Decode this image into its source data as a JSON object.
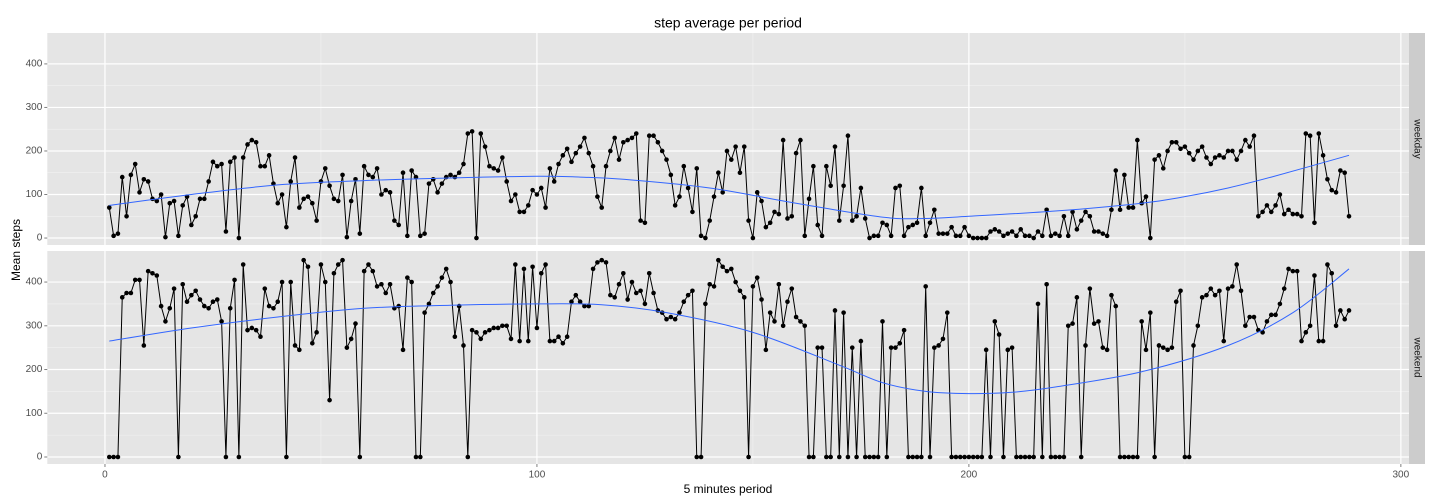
{
  "chart_data": {
    "type": "line",
    "title": "step average per period",
    "x_label": "5 minutes period",
    "y_label": "Mean steps",
    "xlim": [
      -13.35,
      302.35
    ],
    "ylim": [
      -16,
      471
    ],
    "xticks": [
      0,
      100,
      200,
      300
    ],
    "yticks": [
      0,
      100,
      200,
      300,
      400
    ],
    "grid": true,
    "point_color": "#000000",
    "smooth_color": "#3366ff",
    "x": [
      1,
      2,
      3,
      4,
      5,
      6,
      7,
      8,
      9,
      10,
      11,
      12,
      13,
      14,
      15,
      16,
      17,
      18,
      19,
      20,
      21,
      22,
      23,
      24,
      25,
      26,
      27,
      28,
      29,
      30,
      31,
      32,
      33,
      34,
      35,
      36,
      37,
      38,
      39,
      40,
      41,
      42,
      43,
      44,
      45,
      46,
      47,
      48,
      49,
      50,
      51,
      52,
      53,
      54,
      55,
      56,
      57,
      58,
      59,
      60,
      61,
      62,
      63,
      64,
      65,
      66,
      67,
      68,
      69,
      70,
      71,
      72,
      73,
      74,
      75,
      76,
      77,
      78,
      79,
      80,
      81,
      82,
      83,
      84,
      85,
      86,
      87,
      88,
      89,
      90,
      91,
      92,
      93,
      94,
      95,
      96,
      97,
      98,
      99,
      100,
      101,
      102,
      103,
      104,
      105,
      106,
      107,
      108,
      109,
      110,
      111,
      112,
      113,
      114,
      115,
      116,
      117,
      118,
      119,
      120,
      121,
      122,
      123,
      124,
      125,
      126,
      127,
      128,
      129,
      130,
      131,
      132,
      133,
      134,
      135,
      136,
      137,
      138,
      139,
      140,
      141,
      142,
      143,
      144,
      145,
      146,
      147,
      148,
      149,
      150,
      151,
      152,
      153,
      154,
      155,
      156,
      157,
      158,
      159,
      160,
      161,
      162,
      163,
      164,
      165,
      166,
      167,
      168,
      169,
      170,
      171,
      172,
      173,
      174,
      175,
      176,
      177,
      178,
      179,
      180,
      181,
      182,
      183,
      184,
      185,
      186,
      187,
      188,
      189,
      190,
      191,
      192,
      193,
      194,
      195,
      196,
      197,
      198,
      199,
      200,
      201,
      202,
      203,
      204,
      205,
      206,
      207,
      208,
      209,
      210,
      211,
      212,
      213,
      214,
      215,
      216,
      217,
      218,
      219,
      220,
      221,
      222,
      223,
      224,
      225,
      226,
      227,
      228,
      229,
      230,
      231,
      232,
      233,
      234,
      235,
      236,
      237,
      238,
      239,
      240,
      241,
      242,
      243,
      244,
      245,
      246,
      247,
      248,
      249,
      250,
      251,
      252,
      253,
      254,
      255,
      256,
      257,
      258,
      259,
      260,
      261,
      262,
      263,
      264,
      265,
      266,
      267,
      268,
      269,
      270,
      271,
      272,
      273,
      274,
      275,
      276,
      277,
      278,
      279,
      280,
      281,
      282,
      283,
      284,
      285,
      286,
      287,
      288
    ],
    "panels": [
      {
        "label": "weekday",
        "values": [
          70,
          5,
          10,
          140,
          50,
          145,
          170,
          105,
          135,
          130,
          90,
          85,
          100,
          2,
          80,
          85,
          5,
          75,
          95,
          30,
          50,
          90,
          90,
          130,
          175,
          165,
          170,
          15,
          175,
          185,
          0,
          185,
          215,
          225,
          220,
          165,
          165,
          190,
          125,
          80,
          100,
          25,
          130,
          185,
          70,
          90,
          95,
          80,
          40,
          130,
          160,
          120,
          90,
          85,
          145,
          2,
          85,
          135,
          10,
          165,
          145,
          140,
          160,
          100,
          110,
          105,
          40,
          30,
          150,
          5,
          155,
          140,
          5,
          10,
          125,
          135,
          105,
          125,
          140,
          145,
          140,
          150,
          170,
          240,
          245,
          0,
          240,
          210,
          165,
          160,
          155,
          185,
          130,
          85,
          100,
          60,
          60,
          75,
          110,
          100,
          115,
          70,
          160,
          130,
          170,
          190,
          205,
          175,
          195,
          210,
          230,
          195,
          165,
          95,
          70,
          165,
          200,
          230,
          180,
          220,
          225,
          230,
          240,
          40,
          35,
          235,
          235,
          220,
          200,
          180,
          145,
          75,
          95,
          165,
          115,
          60,
          160,
          5,
          0,
          40,
          95,
          150,
          105,
          200,
          180,
          210,
          150,
          210,
          40,
          0,
          105,
          85,
          25,
          35,
          60,
          55,
          225,
          45,
          50,
          195,
          225,
          5,
          90,
          165,
          30,
          5,
          165,
          120,
          210,
          40,
          120,
          235,
          40,
          50,
          115,
          45,
          0,
          5,
          5,
          35,
          30,
          5,
          115,
          120,
          5,
          25,
          30,
          35,
          115,
          5,
          35,
          65,
          10,
          10,
          10,
          25,
          5,
          5,
          25,
          5,
          0,
          0,
          0,
          0,
          15,
          20,
          15,
          5,
          10,
          15,
          5,
          20,
          5,
          5,
          0,
          15,
          5,
          65,
          5,
          10,
          5,
          50,
          5,
          60,
          20,
          40,
          60,
          50,
          15,
          15,
          10,
          5,
          65,
          155,
          65,
          145,
          70,
          70,
          225,
          80,
          95,
          0,
          180,
          190,
          160,
          200,
          220,
          220,
          205,
          210,
          195,
          180,
          200,
          210,
          185,
          170,
          185,
          190,
          185,
          200,
          200,
          180,
          200,
          225,
          210,
          235,
          50,
          60,
          75,
          60,
          75,
          100,
          55,
          65,
          55,
          55,
          50,
          240,
          235,
          35,
          240,
          190,
          135,
          110,
          105,
          155,
          150,
          50
        ],
        "smooth": {
          "x": [
            1,
            20,
            40,
            60,
            80,
            100,
            110,
            120,
            140,
            160,
            180,
            190,
            200,
            220,
            240,
            250,
            260,
            270,
            288
          ],
          "values": [
            75,
            100,
            122,
            132,
            138,
            142,
            140,
            135,
            115,
            80,
            48,
            45,
            50,
            62,
            80,
            95,
            115,
            140,
            190
          ]
        }
      },
      {
        "label": "weekend",
        "values": [
          0,
          0,
          0,
          365,
          375,
          375,
          405,
          405,
          255,
          425,
          420,
          415,
          345,
          310,
          340,
          385,
          0,
          395,
          355,
          370,
          380,
          360,
          345,
          340,
          355,
          360,
          310,
          0,
          340,
          405,
          0,
          440,
          290,
          295,
          290,
          275,
          385,
          345,
          340,
          355,
          400,
          0,
          400,
          255,
          245,
          450,
          435,
          260,
          285,
          440,
          400,
          130,
          420,
          440,
          450,
          250,
          270,
          305,
          0,
          425,
          440,
          425,
          390,
          395,
          375,
          395,
          340,
          345,
          245,
          410,
          400,
          0,
          0,
          330,
          350,
          375,
          390,
          410,
          430,
          400,
          275,
          345,
          255,
          0,
          290,
          285,
          270,
          285,
          290,
          295,
          295,
          300,
          300,
          270,
          440,
          265,
          430,
          265,
          435,
          295,
          420,
          440,
          265,
          265,
          275,
          260,
          275,
          355,
          370,
          355,
          345,
          345,
          430,
          445,
          450,
          445,
          370,
          365,
          395,
          420,
          360,
          400,
          375,
          380,
          350,
          420,
          375,
          335,
          330,
          315,
          320,
          315,
          330,
          355,
          370,
          380,
          0,
          0,
          350,
          395,
          390,
          450,
          435,
          425,
          430,
          400,
          380,
          365,
          0,
          390,
          410,
          360,
          245,
          330,
          310,
          395,
          300,
          355,
          385,
          320,
          310,
          300,
          0,
          0,
          250,
          250,
          0,
          0,
          335,
          0,
          330,
          0,
          250,
          0,
          265,
          0,
          0,
          0,
          0,
          310,
          0,
          250,
          250,
          260,
          290,
          0,
          0,
          0,
          0,
          390,
          0,
          250,
          255,
          270,
          330,
          0,
          0,
          0,
          0,
          0,
          0,
          0,
          0,
          245,
          0,
          310,
          280,
          0,
          245,
          250,
          0,
          0,
          0,
          0,
          0,
          350,
          0,
          395,
          0,
          0,
          0,
          0,
          300,
          305,
          365,
          0,
          255,
          385,
          305,
          310,
          250,
          245,
          370,
          345,
          0,
          0,
          0,
          0,
          0,
          310,
          245,
          330,
          0,
          255,
          250,
          245,
          250,
          355,
          380,
          0,
          0,
          255,
          300,
          365,
          370,
          385,
          370,
          380,
          265,
          385,
          390,
          440,
          380,
          300,
          320,
          320,
          290,
          285,
          310,
          325,
          325,
          350,
          385,
          430,
          425,
          425,
          265,
          285,
          300,
          415,
          265,
          265,
          440,
          420,
          300,
          335,
          315,
          335
        ],
        "smooth": {
          "x": [
            1,
            20,
            40,
            60,
            80,
            100,
            115,
            130,
            150,
            170,
            180,
            190,
            200,
            210,
            220,
            240,
            260,
            275,
            288
          ],
          "values": [
            265,
            295,
            320,
            340,
            347,
            350,
            348,
            330,
            285,
            210,
            170,
            150,
            145,
            148,
            160,
            195,
            255,
            330,
            430
          ]
        }
      }
    ]
  }
}
